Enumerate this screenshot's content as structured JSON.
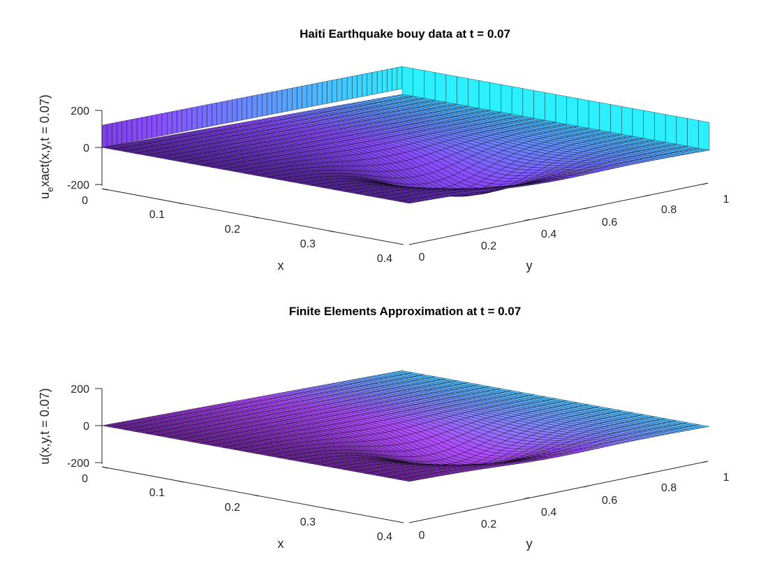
{
  "chart_data": [
    {
      "type": "surface",
      "title": "Haiti Earthquake bouy data at t = 0.07",
      "xlabel": "x",
      "ylabel": "y",
      "zlabel_main": "u",
      "zlabel_sub": "e",
      "zlabel_rest": "xact(x,y,t = 0.07)",
      "x_ticks": [
        "0",
        "0.1",
        "0.2",
        "0.3",
        "0.4"
      ],
      "y_ticks": [
        "0",
        "0.2",
        "0.4",
        "0.6",
        "0.8",
        "1"
      ],
      "z_ticks": [
        "-200",
        "0",
        "200"
      ],
      "xlim": [
        0,
        0.4
      ],
      "ylim": [
        0,
        1
      ],
      "zlim": [
        -200,
        200
      ],
      "colormap": [
        "#4a1a80",
        "#8a4cff",
        "#2cf0ff"
      ],
      "walls": true
    },
    {
      "type": "surface",
      "title": "Finite Elements Approximation at t = 0.07",
      "xlabel": "x",
      "ylabel": "y",
      "zlabel": "u(x,y,t = 0.07)",
      "x_ticks": [
        "0",
        "0.1",
        "0.2",
        "0.3",
        "0.4"
      ],
      "y_ticks": [
        "0",
        "0.2",
        "0.4",
        "0.6",
        "0.8",
        "1"
      ],
      "z_ticks": [
        "-200",
        "0",
        "200"
      ],
      "xlim": [
        0,
        0.4
      ],
      "ylim": [
        0,
        1
      ],
      "zlim": [
        -200,
        200
      ],
      "colormap": [
        "#5a1a7a",
        "#b04cff",
        "#2cf0ff"
      ],
      "walls": false
    }
  ]
}
